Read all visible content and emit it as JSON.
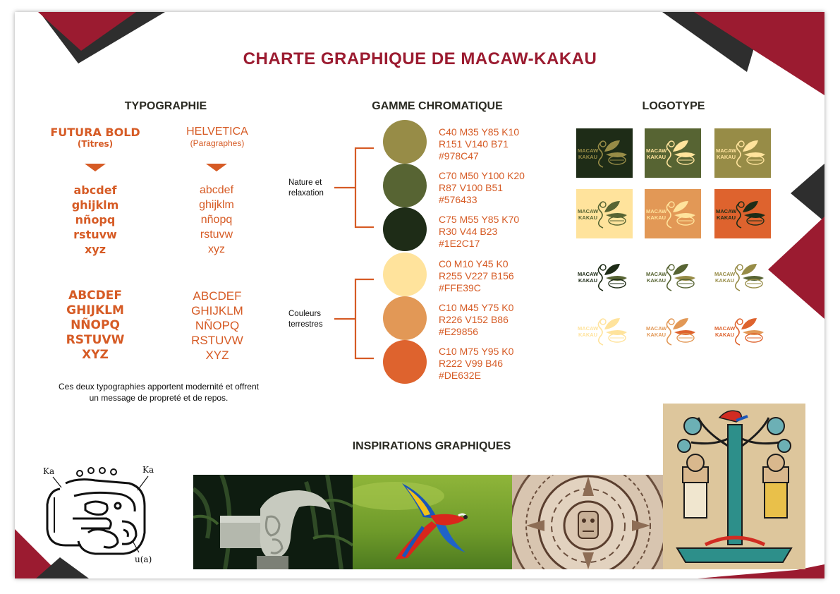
{
  "title": "CHARTE GRAPHIQUE DE MACAW-KAKAU",
  "typography": {
    "heading": "TYPOGRAPHIE",
    "fonts": [
      {
        "name": "FUTURA BOLD",
        "role": "(Titres)",
        "lower": [
          "abcdef",
          "ghijklm",
          "nñopq",
          "rstuvw",
          "xyz"
        ],
        "upper": [
          "ABCDEF",
          "GHIJKLM",
          "NÑOPQ",
          "RSTUVW",
          "XYZ"
        ]
      },
      {
        "name": "HELVETICA",
        "role": "(Paragraphes)",
        "lower": [
          "abcdef",
          "ghijklm",
          "nñopq",
          "rstuvw",
          "xyz"
        ],
        "upper": [
          "ABCDEF",
          "GHIJKLM",
          "NÑOPQ",
          "RSTUVW",
          "XYZ"
        ]
      }
    ],
    "caption_line1": "Ces deux typographies apportent modernité et offrent",
    "caption_line2": "un message de propreté et de repos."
  },
  "palette": {
    "heading": "GAMME CHROMATIQUE",
    "group1": {
      "line1": "Nature et",
      "line2": "relaxation"
    },
    "group2": {
      "line1": "Couleurs",
      "line2": "terrestres"
    },
    "bracket_color": "#d65b25",
    "colors": [
      {
        "hex": "#978C47",
        "cmyk": "C40 M35 Y85 K10",
        "rvb": "R151 V140 B71",
        "code": "#978C47"
      },
      {
        "hex": "#576433",
        "cmyk": "C70 M50 Y100 K20",
        "rvb": "R87 V100 B51",
        "code": "#576433"
      },
      {
        "hex": "#1E2C17",
        "cmyk": "C75 M55 Y85 K70",
        "rvb": "R30 V44 B23",
        "code": "#1E2C17"
      },
      {
        "hex": "#FFE39C",
        "cmyk": "C0 M10 Y45 K0",
        "rvb": "R255 V227 B156",
        "code": "#FFE39C"
      },
      {
        "hex": "#E29856",
        "cmyk": "C10 M45 Y75 K0",
        "rvb": "R226 V152 B86",
        "code": "#E29856"
      },
      {
        "hex": "#DE632E",
        "cmyk": "C10 M75 Y95 K0",
        "rvb": "R222 V99 B46",
        "code": "#DE632E"
      }
    ]
  },
  "logotype": {
    "heading": "LOGOTYPE",
    "logo_line1": "MACAW",
    "logo_line2": "KAKAU",
    "tiles": [
      {
        "bg": "#1E2C17",
        "fg": "#978C47"
      },
      {
        "bg": "#576433",
        "fg": "#FFE39C"
      },
      {
        "bg": "#978C47",
        "fg": "#FFE39C"
      },
      {
        "bg": "#FFE39C",
        "fg": "#576433"
      },
      {
        "bg": "#E29856",
        "fg": "#FFE39C"
      },
      {
        "bg": "#DE632E",
        "fg": "#1E2C17"
      }
    ],
    "free": [
      {
        "text": "#1E2C17",
        "stroke": "#1E2C17",
        "leaf1": "#1E2C17",
        "leaf2": "#576433"
      },
      {
        "text": "#576433",
        "stroke": "#576433",
        "leaf1": "#576433",
        "leaf2": "#978C47"
      },
      {
        "text": "#978C47",
        "stroke": "#978C47",
        "leaf1": "#978C47",
        "leaf2": "#576433"
      },
      {
        "text": "#FFE39C",
        "stroke": "#FFE39C",
        "leaf1": "#FFE39C",
        "leaf2": "#FFE39C"
      },
      {
        "text": "#E29856",
        "stroke": "#E29856",
        "leaf1": "#E29856",
        "leaf2": "#DE632E"
      },
      {
        "text": "#DE632E",
        "stroke": "#DE632E",
        "leaf1": "#DE632E",
        "leaf2": "#E29856"
      }
    ]
  },
  "inspirations": {
    "heading": "INSPIRATIONS GRAPHIQUES",
    "glyph_labels": {
      "left": "Ka",
      "right": "Ka",
      "bottom": "u(a)"
    },
    "images": [
      "stone-macaw-sculpture",
      "flying-scarlet-macaw",
      "aztec-sun-stone",
      "codex-cacao-tree"
    ]
  },
  "colors": {
    "crimson": "#9b1b30",
    "charcoal": "#2e2e2e",
    "orange": "#d65b25"
  }
}
